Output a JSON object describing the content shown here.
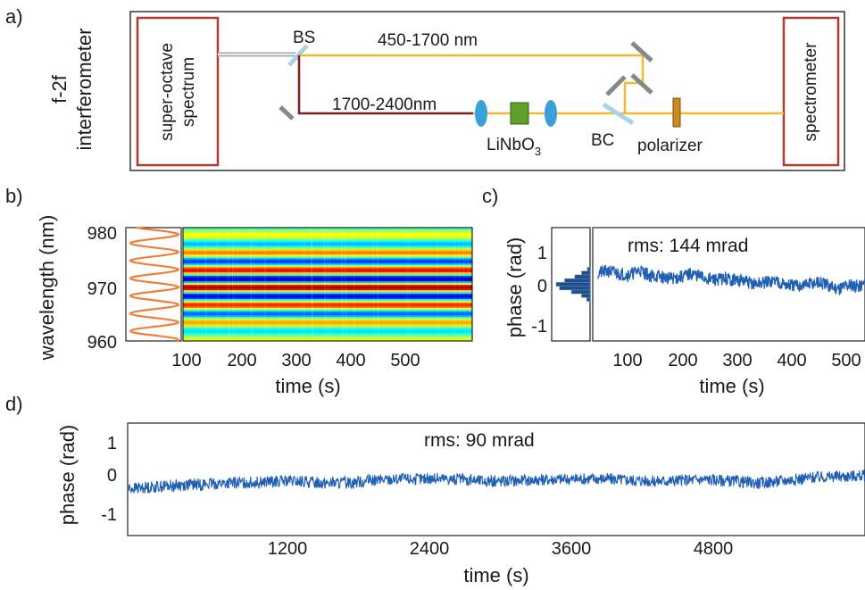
{
  "panel_a": {
    "label": "a)",
    "side_label_line1": "f-2f",
    "side_label_line2": "interferometer",
    "source_box": {
      "line1": "super-octave",
      "line2": "spectrum"
    },
    "detector_box": "spectrometer",
    "bs_label": "BS",
    "upper_arm": "450-1700 nm",
    "lower_arm": "1700-2400nm",
    "crystal": {
      "base": "LiNbO",
      "subscript": "3"
    },
    "bc_label": "BC",
    "polarizer_label": "polarizer",
    "colors": {
      "frame": "#333333",
      "box": "#b03a2e",
      "visible_beam": "#f5b82e",
      "ir_beam": "#7b1f1f",
      "lens": "#3aa0d8",
      "crystal": "#5fa02a",
      "splitter": "#a8d4ea",
      "mirror": "#888888"
    }
  },
  "panel_b": {
    "label": "b)",
    "ylabel": "wavelength (nm)",
    "xlabel": "time (s)",
    "yticks": [
      "980",
      "970",
      "960"
    ],
    "xticks": [
      "100",
      "200",
      "300",
      "400",
      "500"
    ],
    "colors": {
      "spectrum_line": "#f07f3c"
    }
  },
  "panel_c": {
    "label": "c)",
    "ylabel": "phase (rad)",
    "xlabel": "time (s)",
    "yticks": [
      "1",
      "0",
      "-1"
    ],
    "xticks": [
      "100",
      "200",
      "300",
      "400",
      "500"
    ],
    "annotation": "rms: 144 mrad",
    "colors": {
      "trace": "#1f5fb4",
      "hist": "#1f4e8c"
    }
  },
  "panel_d": {
    "label": "d)",
    "ylabel": "phase (rad)",
    "xlabel": "time (s)",
    "yticks": [
      "1",
      "0",
      "-1"
    ],
    "xticks": [
      "1200",
      "2400",
      "3600",
      "4800"
    ],
    "annotation": "rms: 90 mrad",
    "colors": {
      "trace": "#1f5fb4"
    }
  },
  "chart_data": [
    {
      "type": "heatmap",
      "panel": "b",
      "xlim": [
        30,
        550
      ],
      "ylim": [
        960,
        980
      ],
      "xticks": [
        100,
        200,
        300,
        400,
        500
      ],
      "yticks": [
        960,
        970,
        980
      ],
      "fringe_peaks_nm": [
        979,
        975.5,
        972.5,
        969.5,
        966.5,
        963.5,
        961
      ],
      "colormap": "jet"
    },
    {
      "type": "line",
      "panel": "c",
      "xlim": [
        30,
        550
      ],
      "ylim": [
        -1.5,
        1.5
      ],
      "x": [
        40,
        60,
        80,
        100,
        120,
        140,
        160,
        180,
        200,
        220,
        240,
        260,
        280,
        300,
        320,
        340,
        360,
        380,
        400,
        420,
        440,
        460,
        480,
        500,
        520,
        540,
        550
      ],
      "y": [
        0.3,
        0.35,
        0.28,
        0.25,
        0.38,
        0.22,
        0.2,
        0.15,
        0.2,
        0.28,
        0.18,
        0.12,
        0.15,
        0.12,
        0.08,
        0.0,
        0.05,
        0.1,
        -0.02,
        -0.05,
        0.0,
        0.05,
        -0.05,
        -0.1,
        0.0,
        -0.05,
        0.05
      ],
      "rms_mrad": 144,
      "histogram": {
        "bins": [
          -0.4,
          -0.3,
          -0.2,
          -0.1,
          0.0,
          0.1,
          0.2,
          0.3,
          0.4
        ],
        "counts": [
          0.1,
          0.25,
          0.55,
          0.9,
          1.0,
          0.75,
          0.45,
          0.25,
          0.08
        ]
      }
    },
    {
      "type": "line",
      "panel": "d",
      "xlim": [
        0,
        5600
      ],
      "ylim": [
        -1.5,
        1.5
      ],
      "x": [
        0,
        400,
        800,
        1200,
        1600,
        2000,
        2400,
        2800,
        3200,
        3600,
        4000,
        4400,
        4800,
        5200,
        5600
      ],
      "y": [
        -0.25,
        -0.15,
        -0.1,
        -0.05,
        -0.1,
        0.0,
        0.02,
        -0.05,
        0.0,
        0.02,
        -0.05,
        0.0,
        -0.1,
        0.05,
        0.1
      ],
      "rms_mrad": 90
    }
  ]
}
